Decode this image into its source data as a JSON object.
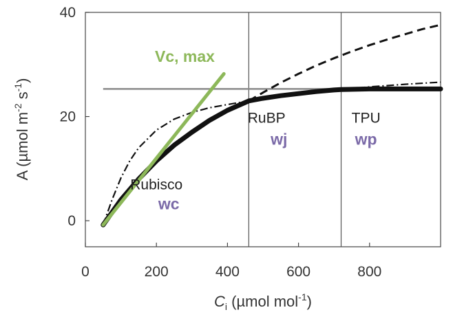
{
  "chart_data": {
    "type": "line",
    "xlabel": {
      "main": "C",
      "sub": "i",
      "unit": " (µmol mol",
      "sup": "-1",
      "close": ")"
    },
    "ylabel": {
      "main": "A (µmol m",
      "sup1": "-2",
      "mid": " s",
      "sup2": "-1",
      "close": ")"
    },
    "xlim": [
      0,
      1000
    ],
    "ylim": [
      -5,
      40
    ],
    "xticks": [
      0,
      200,
      400,
      600,
      800
    ],
    "yticks": [
      0,
      20,
      40
    ],
    "grid": false,
    "vertical_lines": [
      460,
      720
    ],
    "horizontal_line": 25.3,
    "series": [
      {
        "style": "thick-solid",
        "x": [
          50,
          100,
          150,
          200,
          250,
          300,
          350,
          400,
          460,
          500,
          550,
          600,
          650,
          700,
          720,
          800,
          900,
          1000
        ],
        "y": [
          -0.8,
          4.0,
          8.0,
          11.5,
          14.5,
          17.0,
          19.3,
          21.2,
          23.0,
          23.5,
          24.0,
          24.4,
          24.8,
          25.1,
          25.2,
          25.3,
          25.3,
          25.3
        ]
      },
      {
        "style": "dashed",
        "x": [
          460,
          500,
          550,
          600,
          650,
          700,
          750,
          800,
          850,
          900,
          950,
          1000
        ],
        "y": [
          23.0,
          24.6,
          26.5,
          28.2,
          29.8,
          31.2,
          32.5,
          33.7,
          34.8,
          35.8,
          36.8,
          37.6
        ]
      },
      {
        "style": "dash-dot",
        "x": [
          50,
          75,
          100,
          125,
          150,
          200,
          250,
          300,
          350,
          400,
          460,
          550,
          650,
          720,
          800,
          900,
          1000
        ],
        "y": [
          -0.8,
          4.0,
          8.2,
          11.5,
          14.0,
          17.4,
          19.5,
          20.8,
          21.7,
          22.3,
          23.0,
          24.0,
          24.8,
          25.2,
          25.7,
          26.2,
          26.6
        ]
      },
      {
        "style": "green-solid",
        "x": [
          50,
          390
        ],
        "y": [
          -0.8,
          28.2
        ]
      }
    ],
    "annotations": {
      "vc_max": {
        "text": "Vc, max",
        "x": 280,
        "y": 30.5
      },
      "rubisco": {
        "text": "Rubisco",
        "x": 200,
        "y": 6.0
      },
      "wc": {
        "text": "wc",
        "x": 235,
        "y": 2.2
      },
      "rubp": {
        "text": "RuBP",
        "x": 510,
        "y": 18.8
      },
      "wj": {
        "text": "wj",
        "x": 545,
        "y": 14.6
      },
      "tpu": {
        "text": "TPU",
        "x": 790,
        "y": 18.8
      },
      "wp": {
        "text": "wp",
        "x": 790,
        "y": 14.6
      }
    }
  }
}
